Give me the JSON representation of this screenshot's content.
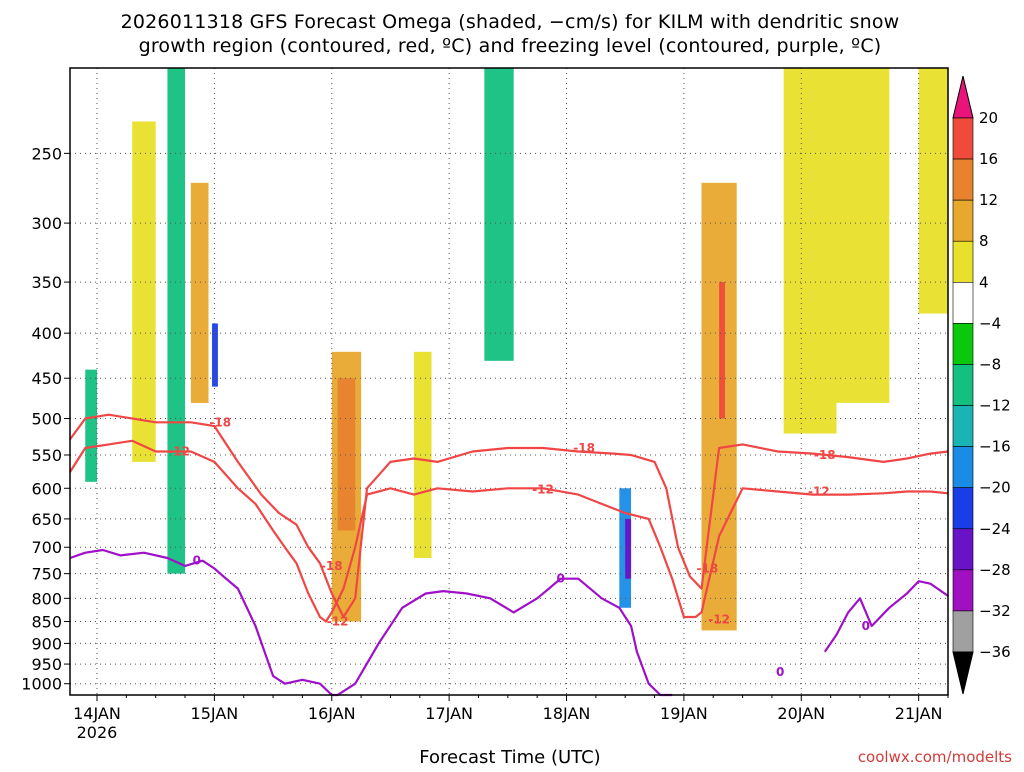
{
  "chart_data": {
    "type": "heatmap",
    "title_line1": "2026011318 GFS Forecast Omega (shaded, −cm/s) for KILM with dendritic snow",
    "title_line2": "growth region (contoured, red, ºC) and freezing level (contoured, purple, ºC)",
    "xlabel": "Forecast Time (UTC)",
    "x_ticks": [
      "14JAN",
      "15JAN",
      "16JAN",
      "17JAN",
      "18JAN",
      "19JAN",
      "20JAN",
      "21JAN"
    ],
    "x_year": "2026",
    "xlim_days": [
      13.77,
      21.25
    ],
    "y_ticks": [
      250,
      300,
      350,
      400,
      450,
      500,
      550,
      600,
      650,
      700,
      750,
      800,
      850,
      900,
      950,
      1000
    ],
    "ylim_hpa": [
      200,
      1030
    ],
    "colorbar": {
      "labels": [
        "20",
        "16",
        "12",
        "8",
        "4",
        "−4",
        "−8",
        "−12",
        "−16",
        "−20",
        "−24",
        "−28",
        "−32",
        "−36"
      ],
      "colors": [
        "#e8e02a",
        "#e8a82e",
        "#e8822e",
        "#f04a3c",
        "#ffffff",
        "#0cc80c",
        "#14c080",
        "#1ab4b4",
        "#1a8ce6",
        "#1a3ee6",
        "#6a12c8",
        "#9e10c0",
        "#a0a0a0"
      ],
      "top_tip_color": "#e8147a",
      "bottom_tip_color": "#000000"
    },
    "contour_labels": {
      "dgz_minus18": "-18",
      "dgz_minus12": "-12",
      "freezing": "0"
    },
    "series": [
      {
        "name": "-18C isotherm",
        "color": "#f04646",
        "x": [
          13.77,
          13.9,
          14.1,
          14.5,
          14.8,
          15.0,
          15.2,
          15.4,
          15.55,
          15.7,
          15.8,
          15.9,
          16.0,
          16.1,
          16.2,
          16.3,
          16.5,
          16.7,
          16.9,
          17.2,
          17.5,
          17.8,
          18.1,
          18.4,
          18.55,
          18.75,
          18.85,
          18.95,
          19.05,
          19.15,
          19.3,
          19.5,
          19.8,
          20.1,
          20.4,
          20.7,
          20.9,
          21.1,
          21.25
        ],
        "y": [
          528,
          500,
          495,
          505,
          505,
          510,
          560,
          610,
          640,
          660,
          700,
          730,
          790,
          840,
          800,
          600,
          560,
          555,
          560,
          545,
          540,
          540,
          545,
          548,
          550,
          560,
          600,
          700,
          755,
          780,
          540,
          535,
          545,
          548,
          553,
          560,
          555,
          548,
          545
        ]
      },
      {
        "name": "-12C isotherm",
        "color": "#f04646",
        "x": [
          13.77,
          13.9,
          14.1,
          14.3,
          14.5,
          14.8,
          15.0,
          15.2,
          15.35,
          15.5,
          15.6,
          15.7,
          15.8,
          15.9,
          15.95,
          16.0,
          16.1,
          16.2,
          16.3,
          16.5,
          16.7,
          16.9,
          17.2,
          17.5,
          17.8,
          18.1,
          18.3,
          18.5,
          18.7,
          18.8,
          18.9,
          19.0,
          19.1,
          19.15,
          19.3,
          19.5,
          19.8,
          20.1,
          20.4,
          20.7,
          20.9,
          21.1,
          21.25
        ],
        "y": [
          575,
          540,
          535,
          530,
          545,
          545,
          560,
          600,
          625,
          670,
          700,
          730,
          790,
          840,
          850,
          830,
          780,
          700,
          610,
          600,
          610,
          600,
          605,
          600,
          600,
          610,
          625,
          640,
          650,
          700,
          760,
          840,
          840,
          830,
          680,
          600,
          605,
          610,
          610,
          608,
          605,
          605,
          608
        ]
      },
      {
        "name": "0C freezing level",
        "color": "#a010c8",
        "x": [
          13.77,
          13.9,
          14.05,
          14.2,
          14.4,
          14.6,
          14.75,
          14.9,
          15.0,
          15.1,
          15.2,
          15.35,
          15.5,
          15.6,
          15.75,
          15.9,
          16.0,
          16.05,
          16.2,
          16.4,
          16.6,
          16.8,
          16.95,
          17.15,
          17.35,
          17.55,
          17.75,
          17.85,
          17.95,
          18.1,
          18.3,
          18.45,
          18.55,
          18.6,
          18.7,
          18.8,
          18.9
        ],
        "y": [
          720,
          710,
          705,
          715,
          710,
          720,
          735,
          725,
          740,
          760,
          780,
          860,
          980,
          1000,
          990,
          1000,
          1030,
          1030,
          1000,
          900,
          820,
          790,
          785,
          790,
          800,
          830,
          800,
          780,
          760,
          760,
          800,
          820,
          860,
          920,
          1000,
          1030,
          1030
        ]
      },
      {
        "name": "0C freezing level (late)",
        "color": "#a010c8",
        "x": [
          20.2,
          20.3,
          20.4,
          20.5,
          20.6,
          20.75,
          20.9,
          21.0,
          21.1,
          21.25
        ],
        "y": [
          920,
          880,
          830,
          800,
          860,
          820,
          790,
          765,
          770,
          795
        ]
      }
    ],
    "shaded_regions": [
      {
        "time_start": 13.9,
        "time_end": 14.0,
        "p_top": 440,
        "p_bottom": 590,
        "value": -8
      },
      {
        "time_start": 14.3,
        "time_end": 14.5,
        "p_top": 230,
        "p_bottom": 560,
        "value": 4
      },
      {
        "time_start": 14.6,
        "time_end": 14.75,
        "p_top": 200,
        "p_bottom": 750,
        "value": -8
      },
      {
        "time_start": 14.8,
        "time_end": 14.95,
        "p_top": 270,
        "p_bottom": 480,
        "value": 8
      },
      {
        "time_start": 14.98,
        "time_end": 15.03,
        "p_top": 390,
        "p_bottom": 460,
        "value": -20
      },
      {
        "time_start": 16.0,
        "time_end": 16.25,
        "p_top": 420,
        "p_bottom": 850,
        "value": 8
      },
      {
        "time_start": 16.05,
        "time_end": 16.2,
        "p_top": 450,
        "p_bottom": 670,
        "value": 12
      },
      {
        "time_start": 16.7,
        "time_end": 16.85,
        "p_top": 420,
        "p_bottom": 720,
        "value": 4
      },
      {
        "time_start": 17.3,
        "time_end": 17.55,
        "p_top": 200,
        "p_bottom": 430,
        "value": -8
      },
      {
        "time_start": 18.45,
        "time_end": 18.55,
        "p_top": 600,
        "p_bottom": 820,
        "value": -16
      },
      {
        "time_start": 18.5,
        "time_end": 18.55,
        "p_top": 650,
        "p_bottom": 760,
        "value": -24
      },
      {
        "time_start": 19.15,
        "time_end": 19.45,
        "p_top": 270,
        "p_bottom": 870,
        "value": 8
      },
      {
        "time_start": 19.3,
        "time_end": 19.35,
        "p_top": 350,
        "p_bottom": 500,
        "value": 16
      },
      {
        "time_start": 19.85,
        "time_end": 20.3,
        "p_top": 200,
        "p_bottom": 520,
        "value": 4
      },
      {
        "time_start": 20.3,
        "time_end": 20.75,
        "p_top": 200,
        "p_bottom": 480,
        "value": 4
      },
      {
        "time_start": 21.0,
        "time_end": 21.25,
        "p_top": 200,
        "p_bottom": 380,
        "value": 4
      }
    ],
    "surface_fill_color": "#a0522d"
  },
  "credit": "coolwx.com/modelts"
}
